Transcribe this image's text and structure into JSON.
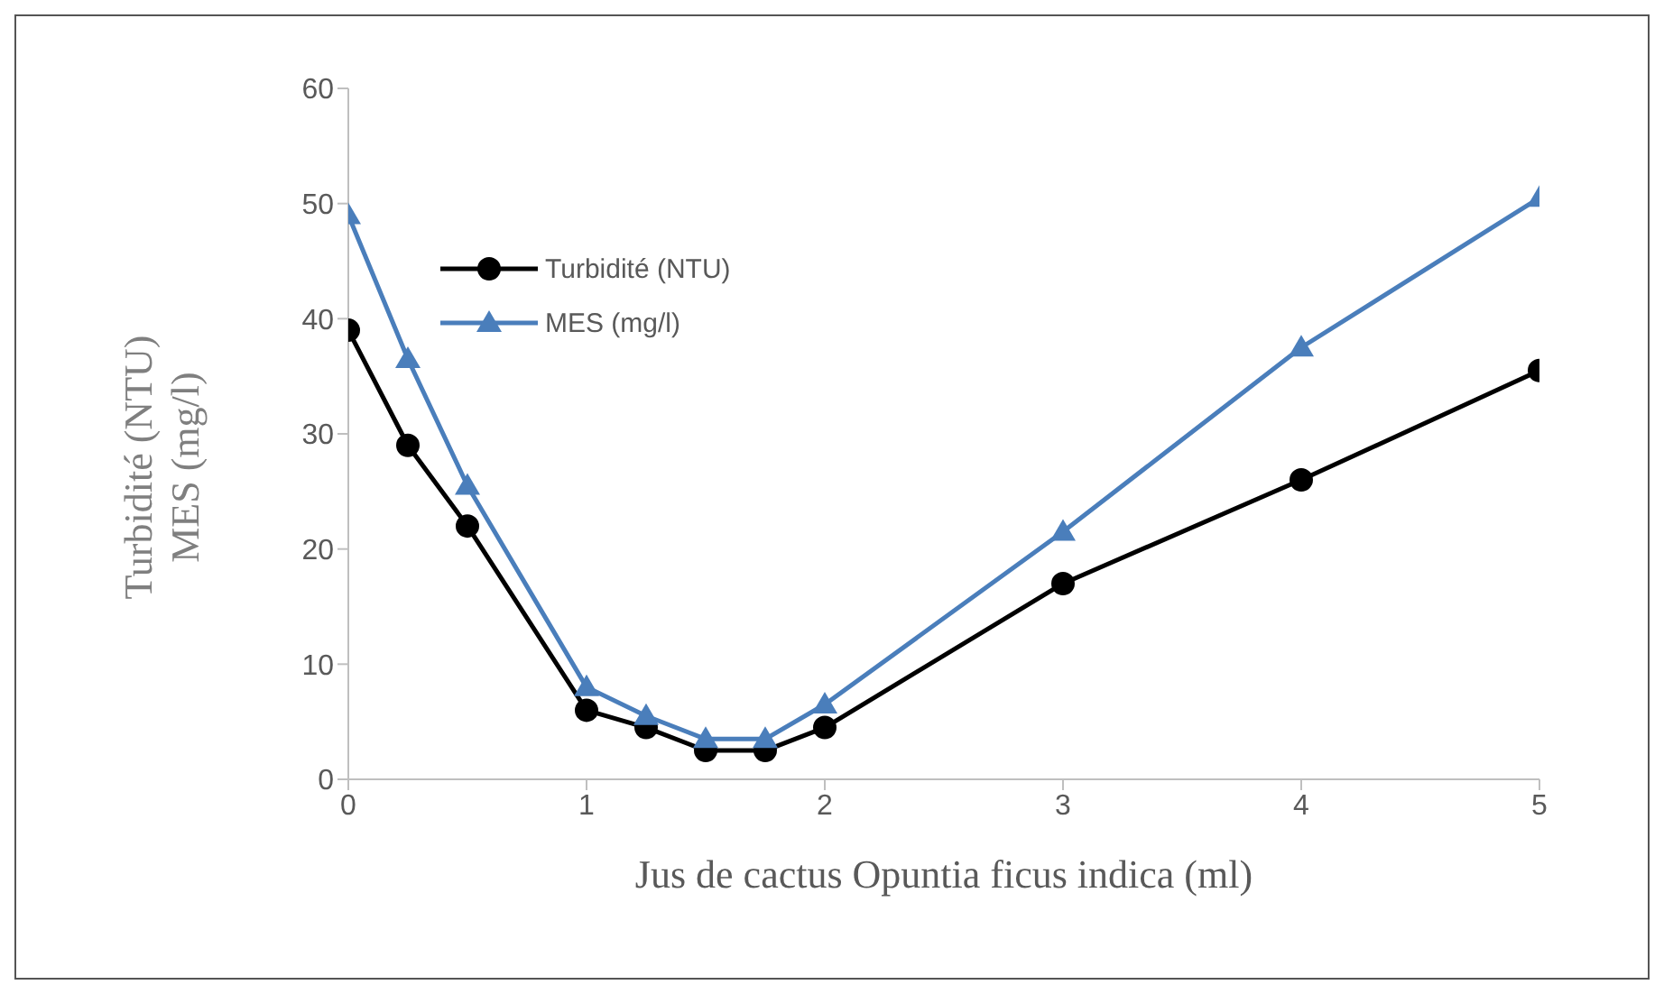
{
  "chart_data": {
    "type": "line",
    "xlabel": "Jus de cactus Opuntia ficus indica (ml)",
    "ylabel": "Turbidité  (NTU)\nMES (mg/l)",
    "x": [
      0,
      0.25,
      0.5,
      1,
      1.25,
      1.5,
      1.75,
      2,
      3,
      4,
      5
    ],
    "series": [
      {
        "name": "Turbidité (NTU)",
        "color": "#000000",
        "marker": "circle",
        "values": [
          39,
          29,
          22,
          6,
          4.5,
          2.5,
          2.5,
          4.5,
          17,
          26,
          35.5
        ]
      },
      {
        "name": "MES (mg/l)",
        "color": "#4a7ebb",
        "marker": "triangle",
        "values": [
          49,
          36.5,
          25.5,
          8,
          5.5,
          3.5,
          3.5,
          6.5,
          21.5,
          37.5,
          50.5
        ]
      }
    ],
    "xlim": [
      0,
      5
    ],
    "xticks": [
      0,
      1,
      2,
      3,
      4,
      5
    ],
    "ylim": [
      0,
      60
    ],
    "yticks": [
      0,
      10,
      20,
      30,
      40,
      50,
      60
    ],
    "grid": false,
    "legend": "top left",
    "line_style": "solid"
  }
}
